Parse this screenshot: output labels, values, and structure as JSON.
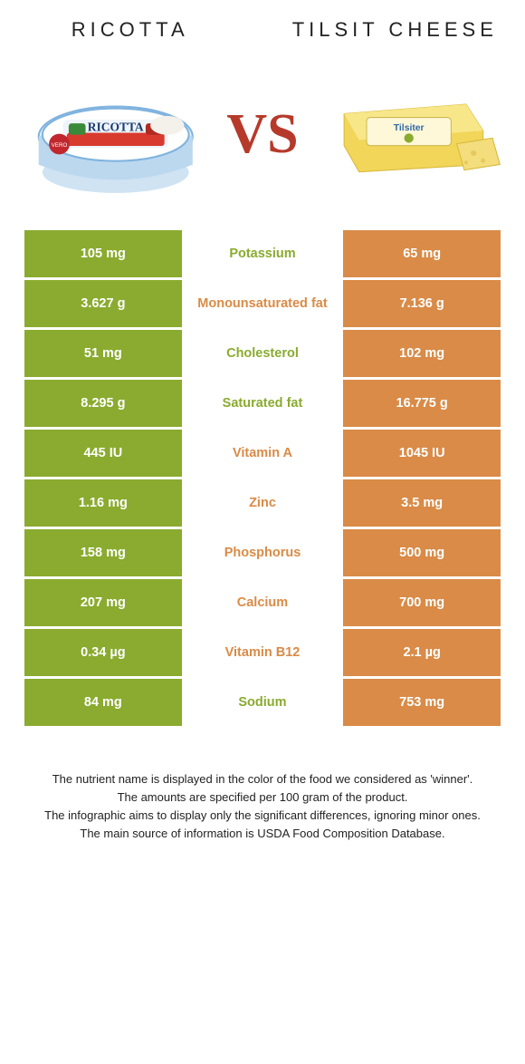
{
  "colors": {
    "left": "#8aab2f",
    "right": "#d98b47",
    "vs": "#b63a2b"
  },
  "left": {
    "title": "RICOTTA"
  },
  "right": {
    "title": "TILSIT CHEESE"
  },
  "vs_label": "VS",
  "rows": [
    {
      "label": "Potassium",
      "left": "105 mg",
      "right": "65 mg",
      "winner": "left"
    },
    {
      "label": "Monounsaturated fat",
      "left": "3.627 g",
      "right": "7.136 g",
      "winner": "right"
    },
    {
      "label": "Cholesterol",
      "left": "51 mg",
      "right": "102 mg",
      "winner": "left"
    },
    {
      "label": "Saturated fat",
      "left": "8.295 g",
      "right": "16.775 g",
      "winner": "left"
    },
    {
      "label": "Vitamin A",
      "left": "445 IU",
      "right": "1045 IU",
      "winner": "right"
    },
    {
      "label": "Zinc",
      "left": "1.16 mg",
      "right": "3.5 mg",
      "winner": "right"
    },
    {
      "label": "Phosphorus",
      "left": "158 mg",
      "right": "500 mg",
      "winner": "right"
    },
    {
      "label": "Calcium",
      "left": "207 mg",
      "right": "700 mg",
      "winner": "right"
    },
    {
      "label": "Vitamin B12",
      "left": "0.34 µg",
      "right": "2.1 µg",
      "winner": "right"
    },
    {
      "label": "Sodium",
      "left": "84 mg",
      "right": "753 mg",
      "winner": "left"
    }
  ],
  "footer": {
    "l1": "The nutrient name is displayed in the color of the food we considered as 'winner'.",
    "l2": "The amounts are specified per 100 gram of the product.",
    "l3": "The infographic aims to display only the significant differences, ignoring minor ones.",
    "l4": "The main source of information is USDA Food Composition Database."
  }
}
